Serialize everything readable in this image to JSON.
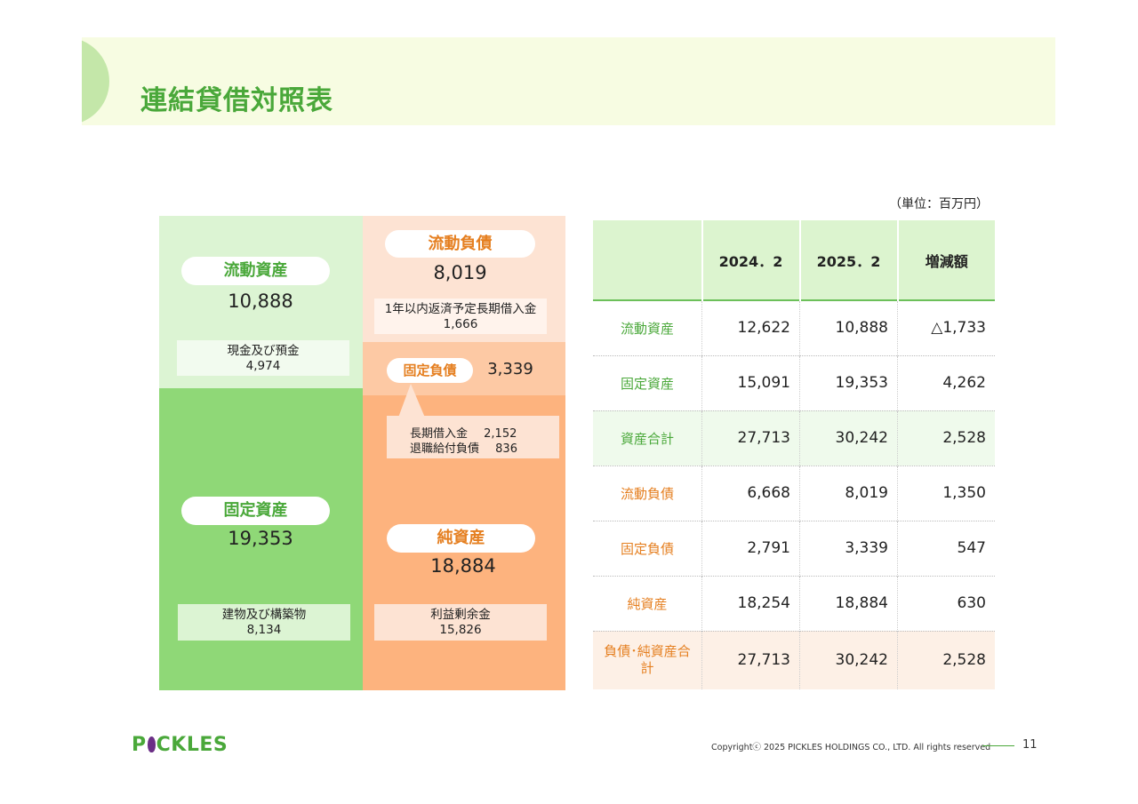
{
  "header": {
    "title": "連結貸借対照表"
  },
  "unit": "（単位：百万円）",
  "diagram": {
    "current_assets": {
      "label": "流動資産",
      "value": "10,888",
      "sub_label": "現金及び預金",
      "sub_value": "4,974"
    },
    "fixed_assets": {
      "label": "固定資産",
      "value": "19,353",
      "sub_label": "建物及び構築物",
      "sub_value": "8,134"
    },
    "current_liabilities": {
      "label": "流動負債",
      "value": "8,019",
      "sub_label": "1年以内返済予定長期借入金",
      "sub_value": "1,666"
    },
    "fixed_liabilities": {
      "label": "固定負債",
      "value": "3,339",
      "sub_line1_label": "長期借入金",
      "sub_line1_value": "2,152",
      "sub_line2_label": "退職給付負債",
      "sub_line2_value": "836"
    },
    "net_assets": {
      "label": "純資産",
      "value": "18,884",
      "sub_label": "利益剰余金",
      "sub_value": "15,826"
    },
    "colors": {
      "light_green": "#dcf4d3",
      "green": "#8fd877",
      "light_orange": "#fde3d3",
      "mid_orange": "#fdc9a4",
      "orange": "#fdb37e"
    }
  },
  "table": {
    "headers": [
      "",
      "2024．2",
      "2025．2",
      "増減額"
    ],
    "rows": [
      {
        "label": "流動資産",
        "v1": "12,622",
        "v2": "10,888",
        "diff": "△1,733",
        "tone": "green",
        "bg": "#ffffff"
      },
      {
        "label": "固定資産",
        "v1": "15,091",
        "v2": "19,353",
        "diff": "4,262",
        "tone": "green",
        "bg": "#ffffff"
      },
      {
        "label": "資産合計",
        "v1": "27,713",
        "v2": "30,242",
        "diff": "2,528",
        "tone": "green",
        "bg": "#effaec"
      },
      {
        "label": "流動負債",
        "v1": "6,668",
        "v2": "8,019",
        "diff": "1,350",
        "tone": "orange",
        "bg": "#ffffff"
      },
      {
        "label": "固定負債",
        "v1": "2,791",
        "v2": "3,339",
        "diff": "547",
        "tone": "orange",
        "bg": "#ffffff"
      },
      {
        "label": "純資産",
        "v1": "18,254",
        "v2": "18,884",
        "diff": "630",
        "tone": "orange",
        "bg": "#ffffff"
      },
      {
        "label": "負債･純資産合計",
        "v1": "27,713",
        "v2": "30,242",
        "diff": "2,528",
        "tone": "orange",
        "bg": "#fdf0e6"
      }
    ]
  },
  "footer": {
    "logo_left": "P",
    "logo_right": "CKLES",
    "copyright": "Copyrightⓒ 2025 PICKLES HOLDINGS CO., LTD. All rights reserved",
    "page": "11"
  }
}
